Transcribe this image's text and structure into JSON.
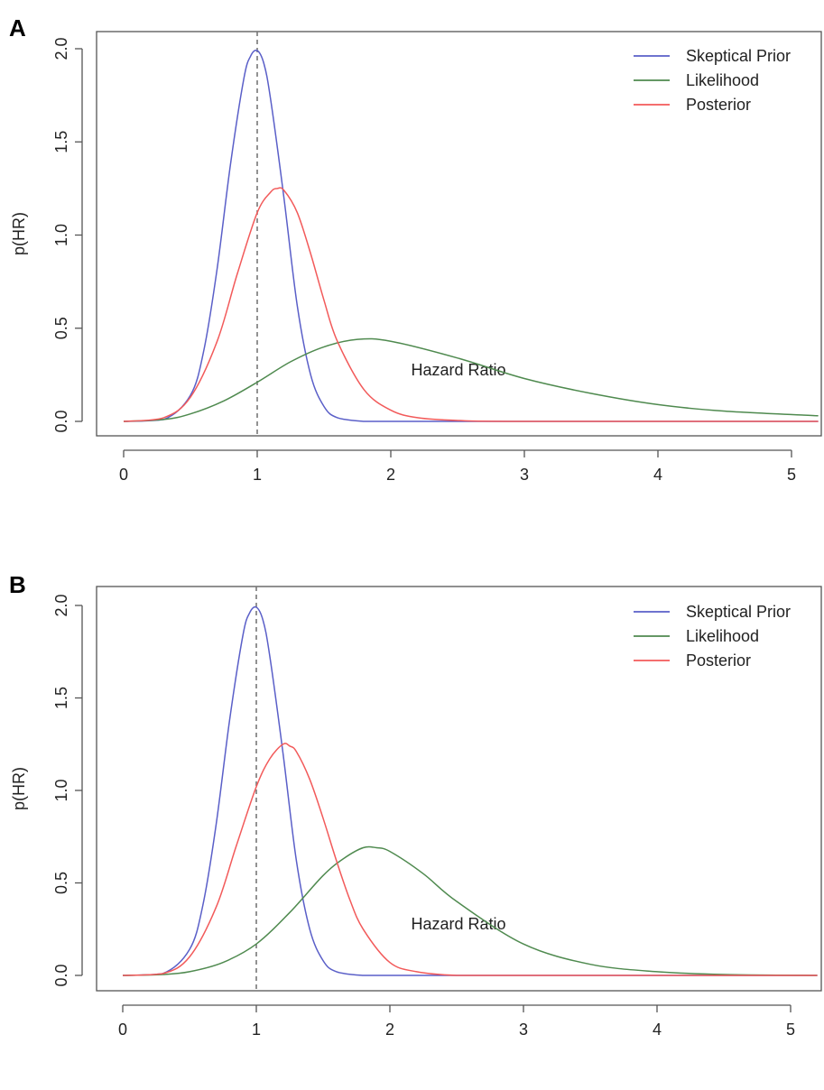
{
  "colors": {
    "prior": "#5a5fc8",
    "likelihood": "#4f8a4f",
    "posterior": "#f25a5a",
    "reference": "#777777",
    "frame": "#555555"
  },
  "chart_data": [
    {
      "panel": "A",
      "type": "line",
      "xlabel": "Hazard Ratio",
      "ylabel": "p(HR)",
      "xlim": [
        0,
        5.2
      ],
      "ylim": [
        0,
        2.0
      ],
      "xticks": [
        "0",
        "1",
        "2",
        "3",
        "4",
        "5"
      ],
      "yticks": [
        "0.0",
        "0.5",
        "1.0",
        "1.5",
        "2.0"
      ],
      "reference_line_x": 1,
      "legend_position": "top-right",
      "series": [
        {
          "name": "Skeptical Prior",
          "x": [
            0,
            0.3,
            0.5,
            0.6,
            0.7,
            0.8,
            0.9,
            0.95,
            1.0,
            1.05,
            1.1,
            1.2,
            1.3,
            1.4,
            1.5,
            1.6,
            1.8,
            2.0,
            3.0,
            5.2
          ],
          "y": [
            0,
            0.01,
            0.14,
            0.38,
            0.82,
            1.38,
            1.84,
            1.96,
            1.99,
            1.92,
            1.73,
            1.2,
            0.62,
            0.25,
            0.08,
            0.02,
            0.0,
            0.0,
            0.0,
            0.0
          ]
        },
        {
          "name": "Likelihood",
          "x": [
            0,
            0.3,
            0.5,
            0.75,
            1.0,
            1.25,
            1.5,
            1.75,
            2.0,
            2.5,
            3.0,
            3.5,
            4.0,
            4.5,
            5.2
          ],
          "y": [
            0,
            0.01,
            0.04,
            0.11,
            0.21,
            0.32,
            0.4,
            0.44,
            0.43,
            0.34,
            0.23,
            0.15,
            0.09,
            0.055,
            0.03
          ]
        },
        {
          "name": "Posterior",
          "x": [
            0,
            0.3,
            0.5,
            0.7,
            0.85,
            1.0,
            1.1,
            1.15,
            1.2,
            1.3,
            1.4,
            1.5,
            1.6,
            1.8,
            2.0,
            2.2,
            2.5,
            3.0,
            5.2
          ],
          "y": [
            0,
            0.02,
            0.13,
            0.43,
            0.79,
            1.12,
            1.23,
            1.25,
            1.24,
            1.12,
            0.9,
            0.65,
            0.43,
            0.17,
            0.06,
            0.02,
            0.005,
            0.0,
            0.0
          ]
        }
      ]
    },
    {
      "panel": "B",
      "type": "line",
      "xlabel": "Hazard Ratio",
      "ylabel": "p(HR)",
      "xlim": [
        0,
        5.2
      ],
      "ylim": [
        0,
        2.0
      ],
      "xticks": [
        "0",
        "1",
        "2",
        "3",
        "4",
        "5"
      ],
      "yticks": [
        "0.0",
        "0.5",
        "1.0",
        "1.5",
        "2.0"
      ],
      "reference_line_x": 1,
      "legend_position": "top-right",
      "series": [
        {
          "name": "Skeptical Prior",
          "x": [
            0,
            0.3,
            0.5,
            0.6,
            0.7,
            0.8,
            0.9,
            0.95,
            1.0,
            1.05,
            1.1,
            1.2,
            1.3,
            1.4,
            1.5,
            1.6,
            1.8,
            2.0,
            3.0,
            5.2
          ],
          "y": [
            0,
            0.01,
            0.14,
            0.38,
            0.82,
            1.38,
            1.84,
            1.96,
            1.99,
            1.92,
            1.73,
            1.2,
            0.62,
            0.25,
            0.08,
            0.02,
            0.0,
            0.0,
            0.0,
            0.0
          ]
        },
        {
          "name": "Likelihood",
          "x": [
            0,
            0.3,
            0.5,
            0.75,
            1.0,
            1.25,
            1.5,
            1.65,
            1.8,
            1.9,
            2.0,
            2.25,
            2.5,
            3.0,
            3.5,
            4.0,
            4.5,
            5.2
          ],
          "y": [
            0,
            0.005,
            0.02,
            0.07,
            0.17,
            0.34,
            0.54,
            0.63,
            0.69,
            0.69,
            0.67,
            0.55,
            0.4,
            0.17,
            0.06,
            0.02,
            0.005,
            0.0
          ]
        },
        {
          "name": "Posterior",
          "x": [
            0,
            0.3,
            0.5,
            0.7,
            0.85,
            1.0,
            1.1,
            1.2,
            1.25,
            1.3,
            1.4,
            1.5,
            1.6,
            1.7,
            1.8,
            2.0,
            2.2,
            2.5,
            3.0,
            5.2
          ],
          "y": [
            0,
            0.01,
            0.1,
            0.37,
            0.7,
            1.02,
            1.17,
            1.25,
            1.24,
            1.21,
            1.06,
            0.85,
            0.62,
            0.41,
            0.25,
            0.07,
            0.02,
            0.0,
            0.0,
            0.0
          ]
        }
      ]
    }
  ]
}
